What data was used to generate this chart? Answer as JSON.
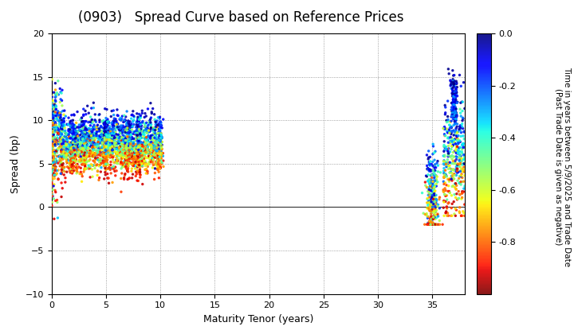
{
  "title": "(0903)   Spread Curve based on Reference Prices",
  "xlabel": "Maturity Tenor (years)",
  "ylabel": "Spread (bp)",
  "colorbar_label_line1": "Time in years between 5/9/2025 and Trade Date",
  "colorbar_label_line2": "(Past Trade Date is given as negative)",
  "xlim": [
    0,
    38
  ],
  "ylim": [
    -10.0,
    20.0
  ],
  "xticks": [
    0,
    5,
    10,
    15,
    20,
    25,
    30,
    35
  ],
  "yticks": [
    -10.0,
    -5.0,
    0.0,
    5.0,
    10.0,
    15.0,
    20.0
  ],
  "colorbar_ticks": [
    0.0,
    -0.2,
    -0.4,
    -0.6,
    -0.8
  ],
  "vmin": -1.0,
  "vmax": 0.0,
  "background_color": "#ffffff",
  "grid_color": "#888888",
  "dot_size": 6,
  "title_fontsize": 12,
  "axis_fontsize": 9,
  "tick_fontsize": 8,
  "colorbar_fontsize": 7.5
}
